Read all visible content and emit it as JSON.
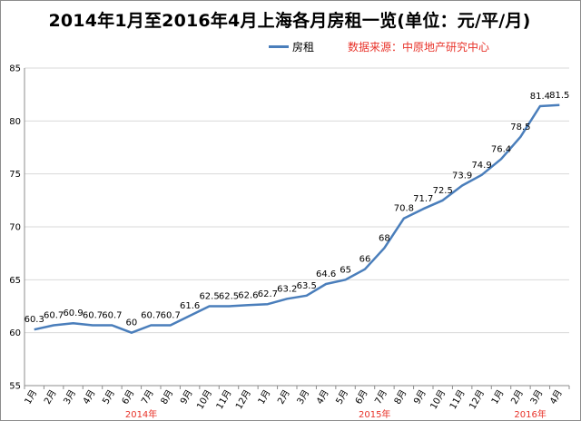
{
  "chart_data": {
    "type": "line",
    "title": "2014年1月至2016年4月上海各月房租一览(单位：元/平/月)",
    "source_note": "数据来源：中原地产研究中心",
    "legend_position": "top",
    "grid": true,
    "ylim": [
      55,
      85
    ],
    "yticks": [
      55,
      60,
      65,
      70,
      75,
      80,
      85
    ],
    "categories": [
      "1月",
      "2月",
      "3月",
      "4月",
      "5月",
      "6月",
      "7月",
      "8月",
      "9月",
      "10月",
      "11月",
      "12月",
      "1月",
      "2月",
      "3月",
      "4月",
      "5月",
      "6月",
      "7月",
      "8月",
      "9月",
      "10月",
      "11月",
      "12月",
      "1月",
      "2月",
      "3月",
      "4月"
    ],
    "year_labels": [
      {
        "label": "2014年",
        "start": 0,
        "end": 11
      },
      {
        "label": "2015年",
        "start": 12,
        "end": 23
      },
      {
        "label": "2016年",
        "start": 24,
        "end": 27
      }
    ],
    "series": [
      {
        "name": "房租",
        "color": "#4a7ebb",
        "values": [
          60.3,
          60.7,
          60.9,
          60.7,
          60.7,
          60,
          60.7,
          60.7,
          61.6,
          62.5,
          62.5,
          62.6,
          62.7,
          63.2,
          63.5,
          64.6,
          65,
          66,
          68,
          70.8,
          71.7,
          72.5,
          73.9,
          74.9,
          76.4,
          78.5,
          81.4,
          81.5
        ]
      }
    ]
  }
}
